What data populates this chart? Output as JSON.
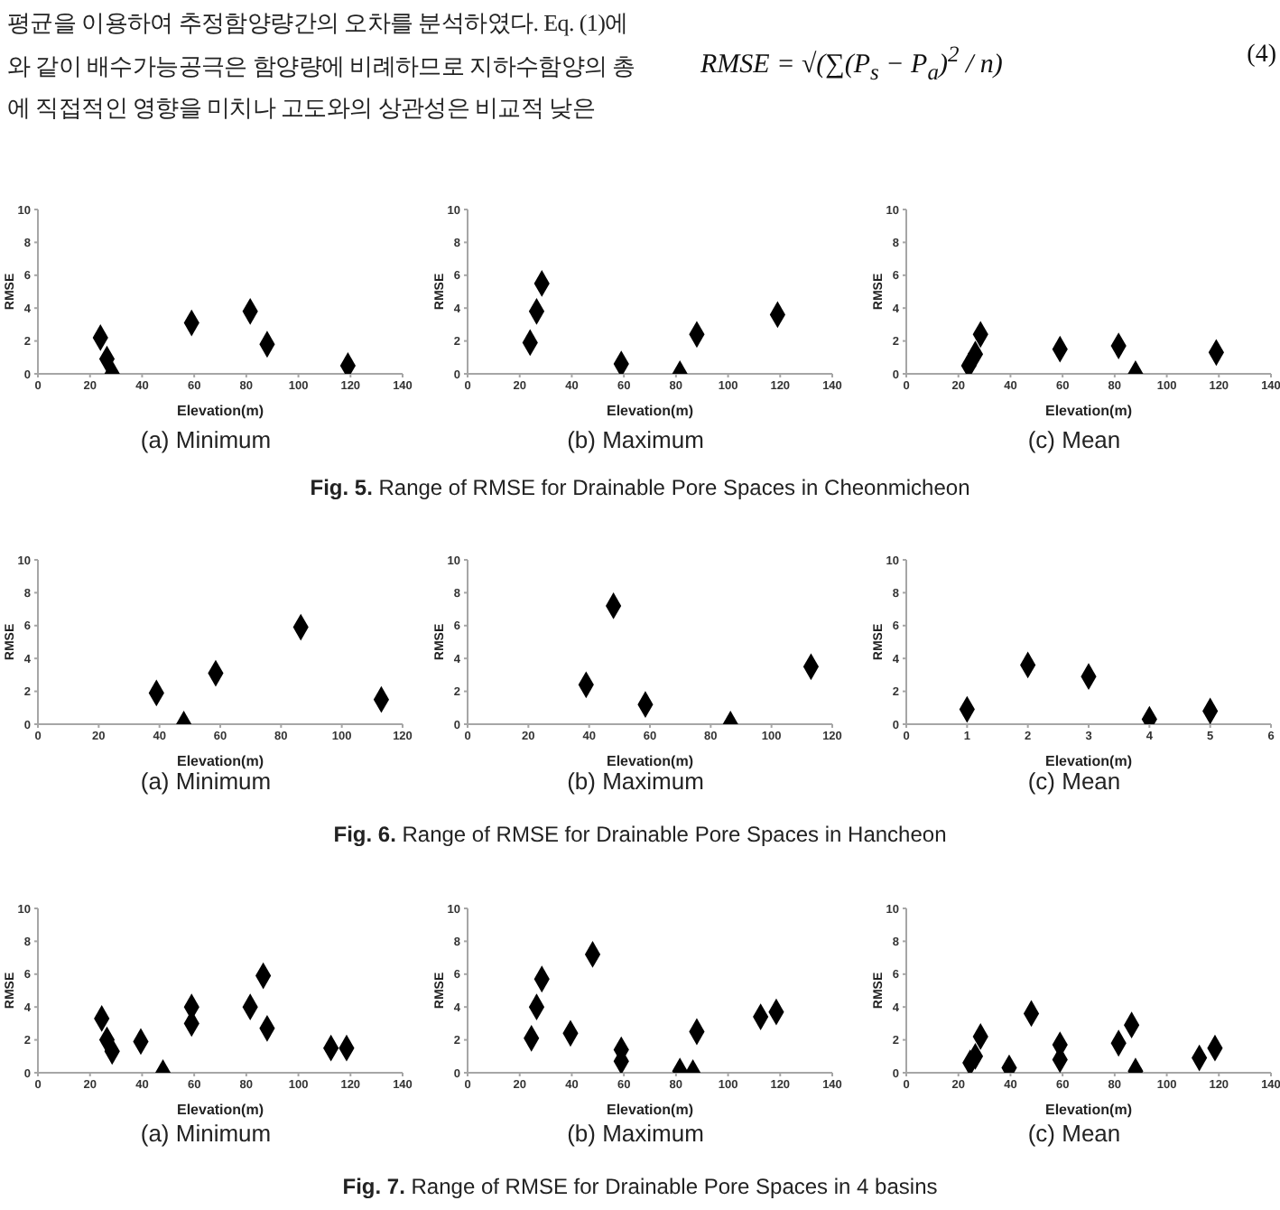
{
  "chart_data": [
    {
      "type": "other",
      "annotations": [
        "평균을 이용하여 추정함양량간의 오차를 분석하였다. Eq. (1)에",
        "와 같이 배수가능공극은 함양량에 비례하므로 지하수함양의 총",
        "에 직접적인 영향을 미치나 고도와의 상관성은 비교적 낮은",
        "RMSE = √(∑(P$_{s}$ − P$_{a}$)$^{2}$ / n)",
        "(4)"
      ]
    },
    {
      "type": "scatter",
      "title": "(a) Minimum",
      "xlabel": "Elevation(m)",
      "ylabel": "RMSE",
      "x": [
        24,
        26.5,
        28.5,
        59,
        81.5,
        88,
        119
      ],
      "values": [
        2.2,
        0.9,
        0,
        3.1,
        3.8,
        1.8,
        0.5
      ],
      "color": "#000000",
      "marker": "diamond",
      "xlim": [
        0,
        140
      ],
      "xticks": [
        0,
        20,
        40,
        60,
        80,
        100,
        120,
        140
      ],
      "ylim": [
        0,
        10
      ],
      "yticks": [
        0,
        2,
        4,
        6,
        8,
        10
      ]
    },
    {
      "type": "scatter",
      "title": "(b) Maximum",
      "xlabel": "Elevation(m)",
      "ylabel": "RMSE",
      "x": [
        24,
        26.5,
        28.5,
        59,
        81.5,
        88,
        119
      ],
      "values": [
        1.9,
        3.8,
        5.5,
        0.6,
        0,
        2.4,
        3.6
      ],
      "color": "#000000",
      "marker": "diamond",
      "xlim": [
        0,
        140
      ],
      "xticks": [
        0,
        20,
        40,
        60,
        80,
        100,
        120,
        140
      ],
      "ylim": [
        0,
        10
      ],
      "yticks": [
        0,
        2,
        4,
        6,
        8,
        10
      ]
    },
    {
      "type": "scatter",
      "title": "(c) Mean",
      "xlabel": "Elevation(m)",
      "ylabel": "RMSE",
      "x": [
        24,
        26.5,
        28.5,
        59,
        81.5,
        88,
        119
      ],
      "values": [
        0.5,
        1.2,
        2.4,
        1.5,
        1.7,
        0,
        1.3
      ],
      "color": "#000000",
      "marker": "diamond",
      "xlim": [
        0,
        140
      ],
      "xticks": [
        0,
        20,
        40,
        60,
        80,
        100,
        120,
        140
      ],
      "ylim": [
        0,
        10
      ],
      "yticks": [
        0,
        2,
        4,
        6,
        8,
        10
      ]
    },
    {
      "type": "other",
      "title": "Fig. 5.",
      "subtitle": "Range of RMSE for Drainable Pore Spaces in Cheonmicheon"
    },
    {
      "type": "scatter",
      "title": "(a) Minimum",
      "xlabel": "Elevation(m)",
      "ylabel": "RMSE",
      "x": [
        39,
        48,
        58.5,
        86.5,
        113
      ],
      "values": [
        1.9,
        0,
        3.1,
        5.9,
        1.5
      ],
      "color": "#000000",
      "marker": "diamond",
      "xlim": [
        0,
        120
      ],
      "xticks": [
        0,
        20,
        40,
        60,
        80,
        100,
        120
      ],
      "ylim": [
        0,
        10
      ],
      "yticks": [
        0,
        2,
        4,
        6,
        8,
        10
      ]
    },
    {
      "type": "scatter",
      "title": "(b) Maximum",
      "xlabel": "Elevation(m)",
      "ylabel": "RMSE",
      "x": [
        39,
        48,
        58.5,
        86.5,
        113
      ],
      "values": [
        2.4,
        7.2,
        1.2,
        0,
        3.5
      ],
      "color": "#000000",
      "marker": "diamond",
      "xlim": [
        0,
        120
      ],
      "xticks": [
        0,
        20,
        40,
        60,
        80,
        100,
        120
      ],
      "ylim": [
        0,
        10
      ],
      "yticks": [
        0,
        2,
        4,
        6,
        8,
        10
      ]
    },
    {
      "type": "scatter",
      "title": "(c) Mean",
      "xlabel": "Elevation(m)",
      "ylabel": "RMSE",
      "x": [
        1,
        2,
        3,
        4,
        5
      ],
      "values": [
        0.9,
        3.6,
        2.9,
        0.3,
        0.8
      ],
      "color": "#000000",
      "marker": "diamond",
      "xlim": [
        0,
        6
      ],
      "xticks": [
        0,
        1,
        2,
        3,
        4,
        5,
        6
      ],
      "ylim": [
        0,
        10
      ],
      "yticks": [
        0,
        2,
        4,
        6,
        8,
        10
      ]
    },
    {
      "type": "other",
      "title": "Fig. 6.",
      "subtitle": "Range of RMSE for Drainable Pore Spaces in Hancheon"
    },
    {
      "type": "scatter",
      "title": "(a) Minimum",
      "xlabel": "Elevation(m)",
      "ylabel": "RMSE",
      "x": [
        24.5,
        26.5,
        28.5,
        39.5,
        48,
        59,
        59,
        81.5,
        86.5,
        88,
        112.5,
        118.5
      ],
      "values": [
        3.3,
        2.0,
        1.3,
        1.9,
        0,
        4.0,
        3.0,
        4.0,
        5.9,
        2.7,
        1.5,
        1.5
      ],
      "color": "#000000",
      "marker": "diamond",
      "xlim": [
        0,
        140
      ],
      "xticks": [
        0,
        20,
        40,
        60,
        80,
        100,
        120,
        140
      ],
      "ylim": [
        0,
        10
      ],
      "yticks": [
        0,
        2,
        4,
        6,
        8,
        10
      ]
    },
    {
      "type": "scatter",
      "title": "(b) Maximum",
      "xlabel": "Elevation(m)",
      "ylabel": "RMSE",
      "x": [
        24.5,
        26.5,
        28.5,
        39.5,
        48,
        59,
        59,
        81.5,
        86.5,
        88,
        112.5,
        118.5
      ],
      "values": [
        2.1,
        4.0,
        5.7,
        2.4,
        7.2,
        1.4,
        0.7,
        0.1,
        0,
        2.5,
        3.4,
        3.7
      ],
      "color": "#000000",
      "marker": "diamond",
      "xlim": [
        0,
        140
      ],
      "xticks": [
        0,
        20,
        40,
        60,
        80,
        100,
        120,
        140
      ],
      "ylim": [
        0,
        10
      ],
      "yticks": [
        0,
        2,
        4,
        6,
        8,
        10
      ]
    },
    {
      "type": "scatter",
      "title": "(c) Mean",
      "xlabel": "Elevation(m)",
      "ylabel": "RMSE",
      "x": [
        24.5,
        26.5,
        28.5,
        39.5,
        48,
        59,
        59,
        81.5,
        86.5,
        88,
        112.5,
        118.5
      ],
      "values": [
        0.6,
        1.0,
        2.2,
        0.3,
        3.6,
        1.7,
        0.8,
        1.8,
        2.9,
        0.1,
        0.9,
        1.5
      ],
      "color": "#000000",
      "marker": "diamond",
      "xlim": [
        0,
        140
      ],
      "xticks": [
        0,
        20,
        40,
        60,
        80,
        100,
        120,
        140
      ],
      "ylim": [
        0,
        10
      ],
      "yticks": [
        0,
        2,
        4,
        6,
        8,
        10
      ]
    },
    {
      "type": "other",
      "title": "Fig. 7.",
      "subtitle": "Range of RMSE for Drainable Pore Spaces in 4 basins"
    }
  ]
}
